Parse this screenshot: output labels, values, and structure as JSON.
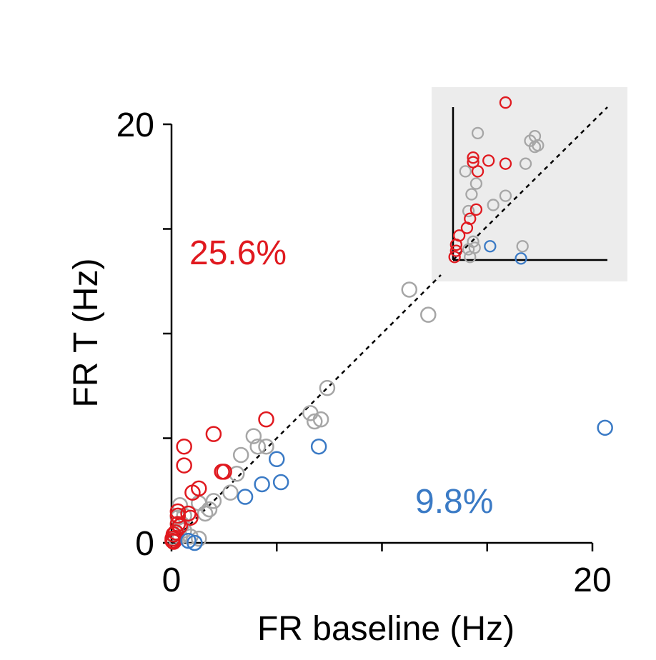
{
  "chart_data": {
    "type": "scatter",
    "xlabel": "FR baseline (Hz)",
    "ylabel": "FR T (Hz)",
    "xlim": [
      0,
      20
    ],
    "ylim": [
      0,
      20
    ],
    "x_ticks": [
      0,
      5,
      10,
      15,
      20
    ],
    "x_tick_labels": [
      "0",
      "",
      "",
      "",
      "20"
    ],
    "y_ticks": [
      0,
      5,
      10,
      15,
      20
    ],
    "y_tick_labels": [
      "0",
      "",
      "",
      "",
      "20"
    ],
    "identity_line": true,
    "annotations": {
      "increase_pct": "25.6%",
      "decrease_pct": "9.8%"
    },
    "colors": {
      "increase": "#e0191f",
      "decrease": "#3a7ac5",
      "unchanged": "#a6a6a6",
      "inset_background": "#ececec"
    },
    "series": [
      {
        "group": "unchanged",
        "color": "#a6a6a6",
        "points": [
          [
            11.3,
            12.1
          ],
          [
            12.2,
            10.9
          ],
          [
            7.4,
            7.4
          ],
          [
            6.6,
            6.2
          ],
          [
            6.8,
            5.8
          ],
          [
            7.1,
            5.9
          ],
          [
            3.9,
            5.1
          ],
          [
            4.1,
            4.6
          ],
          [
            4.5,
            4.6
          ],
          [
            3.3,
            4.2
          ],
          [
            3.1,
            3.3
          ],
          [
            2.8,
            2.4
          ],
          [
            2.0,
            2.0
          ],
          [
            1.8,
            1.6
          ],
          [
            1.6,
            1.4
          ],
          [
            1.3,
            1.9
          ],
          [
            0.4,
            1.8
          ],
          [
            0.3,
            1.2
          ],
          [
            0.6,
            1.3
          ],
          [
            0.2,
            0.5
          ],
          [
            0.4,
            0.3
          ],
          [
            0.6,
            0.6
          ],
          [
            1.3,
            0.2
          ],
          [
            0.9,
            0.3
          ],
          [
            0.5,
            0.9
          ],
          [
            0.2,
            0.2
          ]
        ]
      },
      {
        "group": "increase",
        "color": "#e0191f",
        "points": [
          [
            4.5,
            5.9
          ],
          [
            2.0,
            5.2
          ],
          [
            0.6,
            4.6
          ],
          [
            0.6,
            3.7
          ],
          [
            2.4,
            3.4
          ],
          [
            2.5,
            3.4
          ],
          [
            1.3,
            2.6
          ],
          [
            1.0,
            2.4
          ],
          [
            0.3,
            1.5
          ],
          [
            0.8,
            1.4
          ],
          [
            0.3,
            1.3
          ],
          [
            0.9,
            1.2
          ],
          [
            0.3,
            0.9
          ],
          [
            0.4,
            0.8
          ],
          [
            0.2,
            0.5
          ],
          [
            0.1,
            0.4
          ],
          [
            0.05,
            0.2
          ],
          [
            0.1,
            0.05
          ],
          [
            0.05,
            0.1
          ]
        ]
      },
      {
        "group": "decrease",
        "color": "#3a7ac5",
        "points": [
          [
            20.6,
            5.5
          ],
          [
            7.0,
            4.6
          ],
          [
            5.0,
            4.0
          ],
          [
            5.2,
            2.9
          ],
          [
            4.3,
            2.8
          ],
          [
            3.5,
            2.2
          ],
          [
            0.8,
            0.1
          ],
          [
            1.1,
            0.0
          ]
        ]
      }
    ],
    "inset": {
      "description_free": true,
      "identity_line": true,
      "series": [
        {
          "group": "unchanged",
          "color": "#a6a6a6",
          "points": [
            [
              1.6,
              8.3
            ],
            [
              5.0,
              7.8
            ],
            [
              5.3,
              8.1
            ],
            [
              5.5,
              7.5
            ],
            [
              5.3,
              7.4
            ],
            [
              4.7,
              6.3
            ],
            [
              0.8,
              5.8
            ],
            [
              1.5,
              5.0
            ],
            [
              1.2,
              4.3
            ],
            [
              3.4,
              4.2
            ],
            [
              2.6,
              3.6
            ],
            [
              1.0,
              3.2
            ],
            [
              1.3,
              1.2
            ],
            [
              1.4,
              0.8
            ],
            [
              1.0,
              0.7
            ],
            [
              4.5,
              0.9
            ],
            [
              1.1,
              0.2
            ]
          ]
        },
        {
          "group": "increase",
          "color": "#e0191f",
          "points": [
            [
              3.4,
              10.3
            ],
            [
              1.3,
              6.7
            ],
            [
              1.3,
              6.4
            ],
            [
              2.3,
              6.5
            ],
            [
              3.4,
              6.3
            ],
            [
              1.6,
              5.8
            ],
            [
              1.5,
              3.3
            ],
            [
              1.1,
              2.7
            ],
            [
              0.9,
              2.1
            ],
            [
              0.4,
              1.6
            ],
            [
              0.2,
              1.0
            ],
            [
              0.2,
              0.6
            ],
            [
              0.1,
              0.2
            ]
          ]
        },
        {
          "group": "decrease",
          "color": "#3a7ac5",
          "points": [
            [
              2.4,
              0.9
            ],
            [
              4.4,
              0.1
            ]
          ]
        }
      ]
    }
  }
}
